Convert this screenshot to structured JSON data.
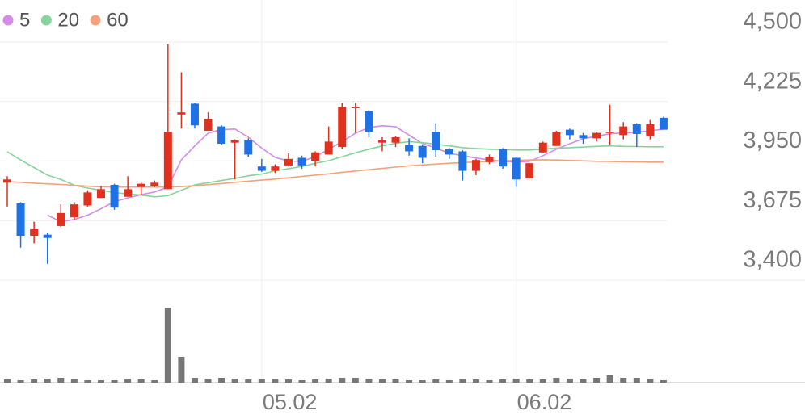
{
  "chart_data": {
    "type": "candlestick",
    "categories": [
      null,
      null,
      null,
      null,
      null,
      null,
      null,
      null,
      null,
      null,
      null,
      null,
      null,
      null,
      null,
      null,
      null,
      null,
      null,
      "05.02",
      null,
      null,
      null,
      null,
      null,
      null,
      null,
      null,
      null,
      null,
      null,
      null,
      null,
      null,
      null,
      null,
      null,
      null,
      "06.02",
      null,
      null,
      null,
      null,
      null,
      null,
      null,
      null,
      null,
      null,
      null
    ],
    "open": [
      3850,
      3755,
      3605,
      3610,
      3650,
      3690,
      3745,
      3780,
      3840,
      3785,
      3830,
      3835,
      3820,
      4165,
      4215,
      4090,
      4110,
      4035,
      4045,
      3925,
      3905,
      3930,
      3965,
      3950,
      3980,
      4015,
      4195,
      4180,
      4035,
      4035,
      4025,
      4020,
      4085,
      4005,
      3995,
      3905,
      3945,
      4005,
      3965,
      3870,
      3990,
      4020,
      4095,
      4070,
      4055,
      4080,
      4070,
      4120,
      4065,
      4150
    ],
    "high": [
      3880,
      3760,
      3670,
      3620,
      3750,
      3760,
      3815,
      3835,
      3845,
      3880,
      3850,
      3860,
      4490,
      4360,
      4220,
      4175,
      4115,
      4050,
      4055,
      3960,
      3935,
      3985,
      3975,
      3995,
      4110,
      4220,
      4220,
      4185,
      4060,
      4065,
      4055,
      4025,
      4125,
      4010,
      4000,
      3960,
      3980,
      4010,
      3970,
      3940,
      4040,
      4090,
      4100,
      4080,
      4085,
      4210,
      4130,
      4125,
      4140,
      4155
    ],
    "low": [
      3740,
      3550,
      3570,
      3475,
      3645,
      3680,
      3740,
      3780,
      3725,
      3785,
      3795,
      3830,
      3820,
      4100,
      4100,
      4090,
      4025,
      3865,
      3970,
      3900,
      3895,
      3925,
      3915,
      3925,
      3980,
      4005,
      4080,
      4060,
      3995,
      4015,
      3975,
      3940,
      3970,
      3960,
      3860,
      3885,
      3935,
      3915,
      3830,
      3870,
      3990,
      4020,
      4050,
      4030,
      4040,
      4025,
      4050,
      4015,
      4050,
      4095
    ],
    "close": [
      3865,
      3605,
      3635,
      3595,
      3710,
      3750,
      3805,
      3820,
      3735,
      3820,
      3845,
      3850,
      4085,
      4175,
      4115,
      4145,
      4030,
      4045,
      3980,
      3905,
      3925,
      3960,
      3930,
      3990,
      4040,
      4200,
      4200,
      4085,
      4045,
      4060,
      3995,
      3965,
      4000,
      3980,
      3905,
      3955,
      3970,
      3925,
      3865,
      3940,
      4035,
      4085,
      4070,
      4055,
      4080,
      4085,
      4110,
      4075,
      4120,
      4095
    ],
    "up_color": "#e0311f",
    "down_color": "#1f72e6",
    "ylim": [
      3400,
      4500
    ],
    "yticks": [
      {
        "value": 3400,
        "label": "3,400"
      },
      {
        "value": 3675,
        "label": "3,675"
      },
      {
        "value": 3950,
        "label": "3,950"
      },
      {
        "value": 4225,
        "label": "4,225"
      },
      {
        "value": 4500,
        "label": "4,500"
      }
    ],
    "grid": true,
    "series": [
      {
        "name": "5",
        "color": "#d48ce6",
        "values": [
          null,
          null,
          null,
          3700,
          3670,
          3680,
          3700,
          3730,
          3762,
          3780,
          3795,
          3807,
          3830,
          3956,
          4020,
          4079,
          4095,
          4098,
          4060,
          4010,
          3967,
          3950,
          3949,
          3970,
          4005,
          4040,
          4079,
          4105,
          4113,
          4109,
          4070,
          4031,
          4010,
          3986,
          3975,
          3964,
          3955,
          3949,
          3945,
          3949,
          3975,
          4005,
          4030,
          4053,
          4065,
          4076,
          4080,
          4083,
          4090,
          4098
        ]
      },
      {
        "name": "20",
        "color": "#86d49c",
        "values": [
          3993,
          3955,
          3920,
          3885,
          3865,
          3838,
          3825,
          3815,
          3805,
          3798,
          3793,
          3785,
          3790,
          3815,
          3840,
          3850,
          3860,
          3870,
          3882,
          3890,
          3905,
          3915,
          3925,
          3940,
          3952,
          3970,
          3988,
          4005,
          4020,
          4032,
          4040,
          4035,
          4028,
          4020,
          4012,
          4008,
          4005,
          4003,
          4001,
          4001,
          4005,
          4010,
          4012,
          4015,
          4018,
          4020,
          4018,
          4017,
          4016,
          4016
        ]
      },
      {
        "name": "60",
        "color": "#f2a27c",
        "values": [
          3855,
          3852,
          3848,
          3845,
          3842,
          3838,
          3834,
          3831,
          3830,
          3830,
          3830,
          3830,
          3830,
          3832,
          3836,
          3841,
          3846,
          3852,
          3857,
          3862,
          3867,
          3873,
          3879,
          3885,
          3891,
          3898,
          3904,
          3910,
          3916,
          3922,
          3928,
          3932,
          3936,
          3940,
          3943,
          3946,
          3949,
          3951,
          3953,
          3955,
          3956,
          3955,
          3953,
          3951,
          3949,
          3948,
          3947,
          3946,
          3945,
          3945
        ]
      }
    ],
    "volume": {
      "color": "#777777",
      "values": [
        4,
        3,
        4,
        5,
        6,
        4,
        3,
        3,
        3,
        5,
        4,
        3,
        93,
        32,
        6,
        5,
        6,
        5,
        4,
        5,
        4,
        4,
        3,
        4,
        5,
        6,
        6,
        5,
        4,
        4,
        3,
        3,
        4,
        3,
        4,
        4,
        3,
        4,
        5,
        4,
        4,
        6,
        5,
        4,
        6,
        9,
        6,
        6,
        5,
        3
      ]
    }
  }
}
